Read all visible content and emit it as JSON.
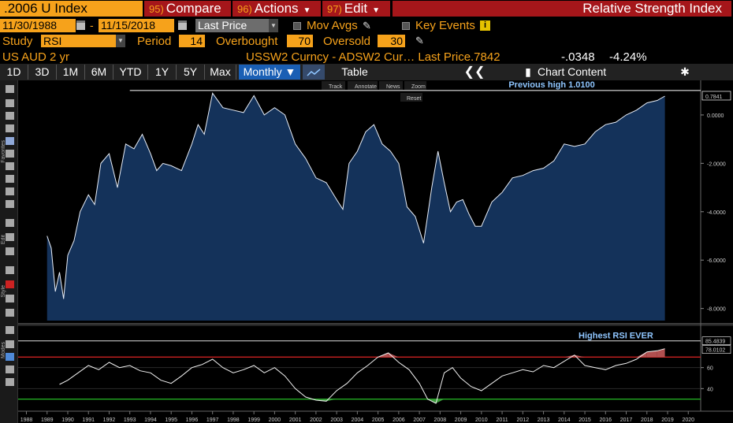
{
  "header": {
    "ticker": ".2006 U Index",
    "compare_num": "95)",
    "compare_label": "Compare",
    "actions_num": "96)",
    "actions_label": "Actions",
    "edit_num": "97)",
    "edit_label": "Edit",
    "title": "Relative Strength Index"
  },
  "range": {
    "start": "11/30/1988",
    "separator": "-",
    "end": "11/15/2018",
    "field": "Last Price",
    "mov_avgs": "Mov Avgs",
    "key_events": "Key Events"
  },
  "study": {
    "label": "Study",
    "value": "RSI",
    "period_label": "Period",
    "period": "14",
    "overbought_label": "Overbought",
    "overbought": "70",
    "oversold_label": "Oversold",
    "oversold": "30"
  },
  "security": {
    "name": "US AUD 2 yr",
    "desc": "USSW2 Curncy - ADSW2 Cur… Last Price",
    "last_price": ".7842",
    "change": "-.0348",
    "pct_change": "-4.24%"
  },
  "toolbar": {
    "periods": [
      "1D",
      "3D",
      "1M",
      "6M",
      "YTD",
      "1Y",
      "5Y",
      "Max"
    ],
    "frequency": "Monthly",
    "table": "Table",
    "chart_content": "Chart Content"
  },
  "chart_tools": [
    "Track",
    "Annotate",
    "News",
    "Zoom",
    "Reset"
  ],
  "side_labels": [
    "Favorites",
    "Edit",
    "Style",
    "Modes"
  ],
  "colors": {
    "ticker_bg": "#f6a21b",
    "menu_bg": "#a5161a",
    "area_fill": "#14325a",
    "overbought_line": "#cc2222",
    "oversold_line": "#22aa22",
    "rsi_over_fill": "#b05050",
    "rsi_under_fill": "#3a9a3a",
    "annotation": "#8fc6ff"
  },
  "chart_data": [
    {
      "type": "area",
      "title": "USSW2 Curncy - ADSW2 Curncy Last Price",
      "ylim": [
        -8.5,
        1.3
      ],
      "y_ticks": [
        0.0,
        -2.0,
        -4.0,
        -6.0,
        -8.0
      ],
      "y_tick_labels": [
        "0.0000",
        "-2.0000",
        "-4.0000",
        "-6.0000",
        "-8.0000"
      ],
      "last_value_label": "0.7841",
      "annotation": {
        "text": "Previous high 1.0100",
        "value": 1.01
      },
      "x": [
        1989.0,
        1989.2,
        1989.4,
        1989.6,
        1989.8,
        1990.0,
        1990.3,
        1990.6,
        1991.0,
        1991.3,
        1991.6,
        1992.0,
        1992.4,
        1992.8,
        1993.2,
        1993.6,
        1994.0,
        1994.3,
        1994.6,
        1995.0,
        1995.5,
        1996.0,
        1996.3,
        1996.6,
        1997.0,
        1997.5,
        1998.0,
        1998.5,
        1999.0,
        1999.5,
        2000.0,
        2000.5,
        2001.0,
        2001.5,
        2002.0,
        2002.5,
        2003.0,
        2003.3,
        2003.6,
        2004.0,
        2004.4,
        2004.8,
        2005.2,
        2005.6,
        2006.0,
        2006.4,
        2006.8,
        2007.2,
        2007.6,
        2007.9,
        2008.2,
        2008.5,
        2008.8,
        2009.1,
        2009.4,
        2009.7,
        2010.0,
        2010.5,
        2011.0,
        2011.5,
        2012.0,
        2012.5,
        2013.0,
        2013.5,
        2014.0,
        2014.5,
        2015.0,
        2015.5,
        2016.0,
        2016.5,
        2017.0,
        2017.5,
        2018.0,
        2018.5,
        2018.87
      ],
      "y": [
        -5.0,
        -5.5,
        -7.3,
        -6.5,
        -7.6,
        -5.8,
        -5.2,
        -4.0,
        -3.3,
        -3.7,
        -2.0,
        -1.6,
        -3.0,
        -1.2,
        -1.4,
        -0.8,
        -1.6,
        -2.3,
        -2.0,
        -2.1,
        -2.3,
        -1.2,
        -0.4,
        -0.8,
        0.9,
        0.3,
        0.2,
        0.1,
        0.8,
        0.0,
        0.3,
        0.0,
        -1.2,
        -1.8,
        -2.6,
        -2.8,
        -3.5,
        -3.9,
        -2.0,
        -1.5,
        -0.7,
        -0.4,
        -1.2,
        -1.5,
        -2.0,
        -3.8,
        -4.2,
        -5.3,
        -3.0,
        -1.5,
        -2.8,
        -4.0,
        -3.6,
        -3.5,
        -4.1,
        -4.6,
        -4.6,
        -3.6,
        -3.2,
        -2.6,
        -2.5,
        -2.3,
        -2.2,
        -1.9,
        -1.2,
        -1.3,
        -1.2,
        -0.7,
        -0.4,
        -0.3,
        0.0,
        0.2,
        0.5,
        0.6,
        0.78
      ]
    },
    {
      "type": "line",
      "title": "RSI",
      "ylim": [
        20,
        95
      ],
      "y_ticks": [
        40,
        60
      ],
      "overbought": 70,
      "oversold": 30,
      "last_value_labels": [
        "85.4839",
        "78.0102"
      ],
      "annotation": {
        "text": "Highest RSI EVER",
        "value": 85.48
      },
      "x_ticks": [
        1988,
        1989,
        1990,
        1991,
        1992,
        1993,
        1994,
        1995,
        1996,
        1997,
        1998,
        1999,
        2000,
        2001,
        2002,
        2003,
        2004,
        2005,
        2006,
        2007,
        2008,
        2009,
        2010,
        2011,
        2012,
        2013,
        2014,
        2015,
        2016,
        2017,
        2018,
        2019,
        2020
      ],
      "x": [
        1989.6,
        1990.0,
        1990.5,
        1991.0,
        1991.5,
        1992.0,
        1992.5,
        1993.0,
        1993.5,
        1994.0,
        1994.5,
        1995.0,
        1995.5,
        1996.0,
        1996.5,
        1997.0,
        1997.5,
        1998.0,
        1998.5,
        1999.0,
        1999.5,
        2000.0,
        2000.5,
        2001.0,
        2001.5,
        2002.0,
        2002.5,
        2003.0,
        2003.5,
        2004.0,
        2004.5,
        2005.0,
        2005.5,
        2006.0,
        2006.5,
        2007.0,
        2007.4,
        2007.8,
        2008.2,
        2008.6,
        2009.0,
        2009.5,
        2010.0,
        2010.5,
        2011.0,
        2011.5,
        2012.0,
        2012.5,
        2013.0,
        2013.5,
        2014.0,
        2014.5,
        2015.0,
        2015.5,
        2016.0,
        2016.5,
        2017.0,
        2017.5,
        2018.0,
        2018.5,
        2018.87
      ],
      "y": [
        44,
        48,
        55,
        62,
        58,
        65,
        60,
        62,
        57,
        55,
        48,
        45,
        52,
        60,
        63,
        68,
        60,
        55,
        58,
        62,
        55,
        60,
        52,
        40,
        32,
        29,
        28,
        38,
        45,
        55,
        62,
        70,
        74,
        65,
        58,
        45,
        30,
        26,
        55,
        60,
        50,
        42,
        38,
        45,
        52,
        55,
        58,
        56,
        62,
        60,
        66,
        72,
        62,
        60,
        58,
        62,
        64,
        68,
        75,
        76,
        78
      ]
    }
  ]
}
